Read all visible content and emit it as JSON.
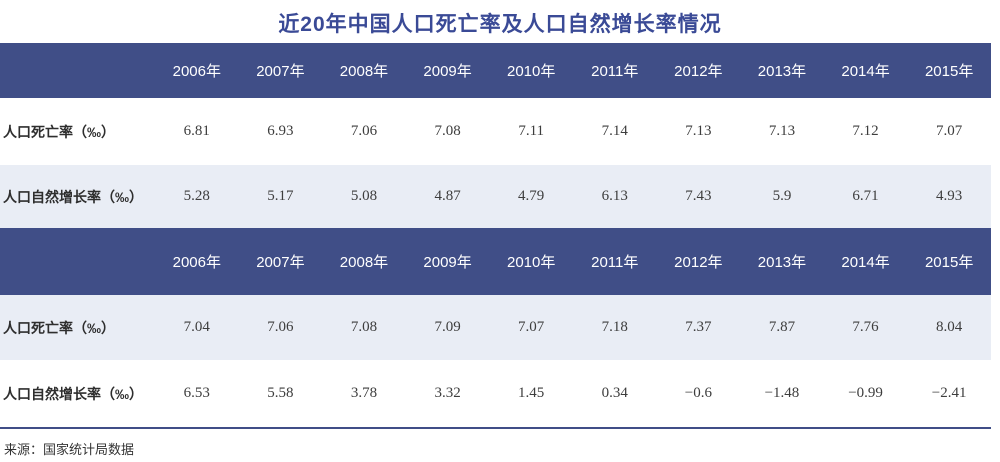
{
  "title": "近20年中国人口死亡率及人口自然增长率情况",
  "colors": {
    "header_bg": "#404e87",
    "stripe_bg": "#e9edf5",
    "title_color": "#3a4a96",
    "rule_color": "#404e87"
  },
  "chart_data": [
    {
      "type": "table",
      "title": "近20年中国人口死亡率及人口自然增长率情况（上表）",
      "categories": [
        "2006年",
        "2007年",
        "2008年",
        "2009年",
        "2010年",
        "2011年",
        "2012年",
        "2013年",
        "2014年",
        "2015年"
      ],
      "series": [
        {
          "name": "人口死亡率（‰）",
          "values": [
            6.81,
            6.93,
            7.06,
            7.08,
            7.11,
            7.14,
            7.13,
            7.13,
            7.12,
            7.07
          ]
        },
        {
          "name": "人口自然增长率（‰）",
          "values": [
            5.28,
            5.17,
            5.08,
            4.87,
            4.79,
            6.13,
            7.43,
            5.9,
            6.71,
            4.93
          ]
        }
      ]
    },
    {
      "type": "table",
      "title": "近20年中国人口死亡率及人口自然增长率情况（下表）",
      "categories": [
        "2006年",
        "2007年",
        "2008年",
        "2009年",
        "2010年",
        "2011年",
        "2012年",
        "2013年",
        "2014年",
        "2015年"
      ],
      "series": [
        {
          "name": "人口死亡率（‰）",
          "values": [
            7.04,
            7.06,
            7.08,
            7.09,
            7.07,
            7.18,
            7.37,
            7.87,
            7.76,
            8.04
          ]
        },
        {
          "name": "人口自然增长率（‰）",
          "values": [
            6.53,
            5.58,
            3.78,
            3.32,
            1.45,
            0.34,
            -0.6,
            -1.48,
            -0.99,
            -2.41
          ]
        }
      ]
    }
  ],
  "footer": {
    "source": "来源：国家统计局数据"
  }
}
